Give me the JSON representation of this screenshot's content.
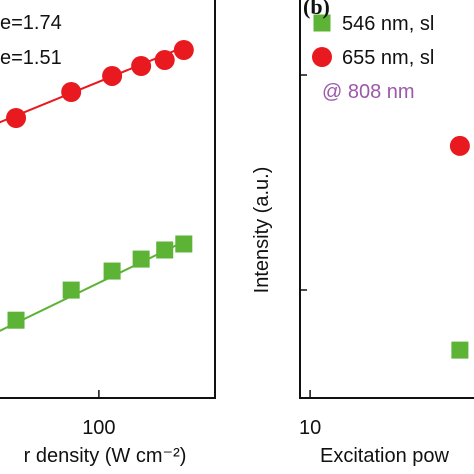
{
  "chart_data": [
    {
      "type": "scatter",
      "xlog": true,
      "ylog": true,
      "xlim": [
        36.8,
        316
      ],
      "ylim": [
        1,
        10000
      ],
      "xticks": [
        100
      ],
      "xlabel": "r density (W cm⁻²)",
      "annotations": [
        "e=1.74",
        "e=1.51"
      ],
      "series": [
        {
          "color": "#e8191f",
          "marker": "circle",
          "x": [
            44,
            76,
            114,
            152,
            192,
            232
          ],
          "values": [
            631,
            1148,
            1660,
            2089,
            2399,
            3020
          ]
        },
        {
          "color": "#5cb335",
          "marker": "square",
          "x": [
            44,
            76,
            114,
            152,
            192,
            232
          ],
          "values": [
            6.0,
            12.0,
            18.6,
            24.5,
            30.2,
            34.7
          ]
        }
      ],
      "fits": [
        {
          "color": "#e8191f",
          "x": [
            36.8,
            250
          ],
          "values": [
            562,
            3470
          ]
        },
        {
          "color": "#5cb335",
          "x": [
            36.8,
            250
          ],
          "values": [
            4.6,
            39.8
          ]
        }
      ]
    },
    {
      "type": "scatter",
      "xlog": true,
      "ylog": true,
      "xlim": [
        9.05,
        51.6
      ],
      "ylim": [
        31.5,
        2280
      ],
      "xticks": [
        10
      ],
      "panel_label": "(b)",
      "xlabel": "Excitation pow",
      "ylabel": "Intensity (a.u.)",
      "annotations": [
        "@ 808 nm"
      ],
      "series": [
        {
          "name": "546 nm, sl",
          "color": "#5cb335",
          "marker": "square",
          "x": [
            44
          ],
          "values": [
            52.6
          ]
        },
        {
          "name": "655 nm, sl",
          "color": "#e8191f",
          "marker": "circle",
          "x": [
            44
          ],
          "values": [
            468
          ]
        }
      ]
    }
  ]
}
